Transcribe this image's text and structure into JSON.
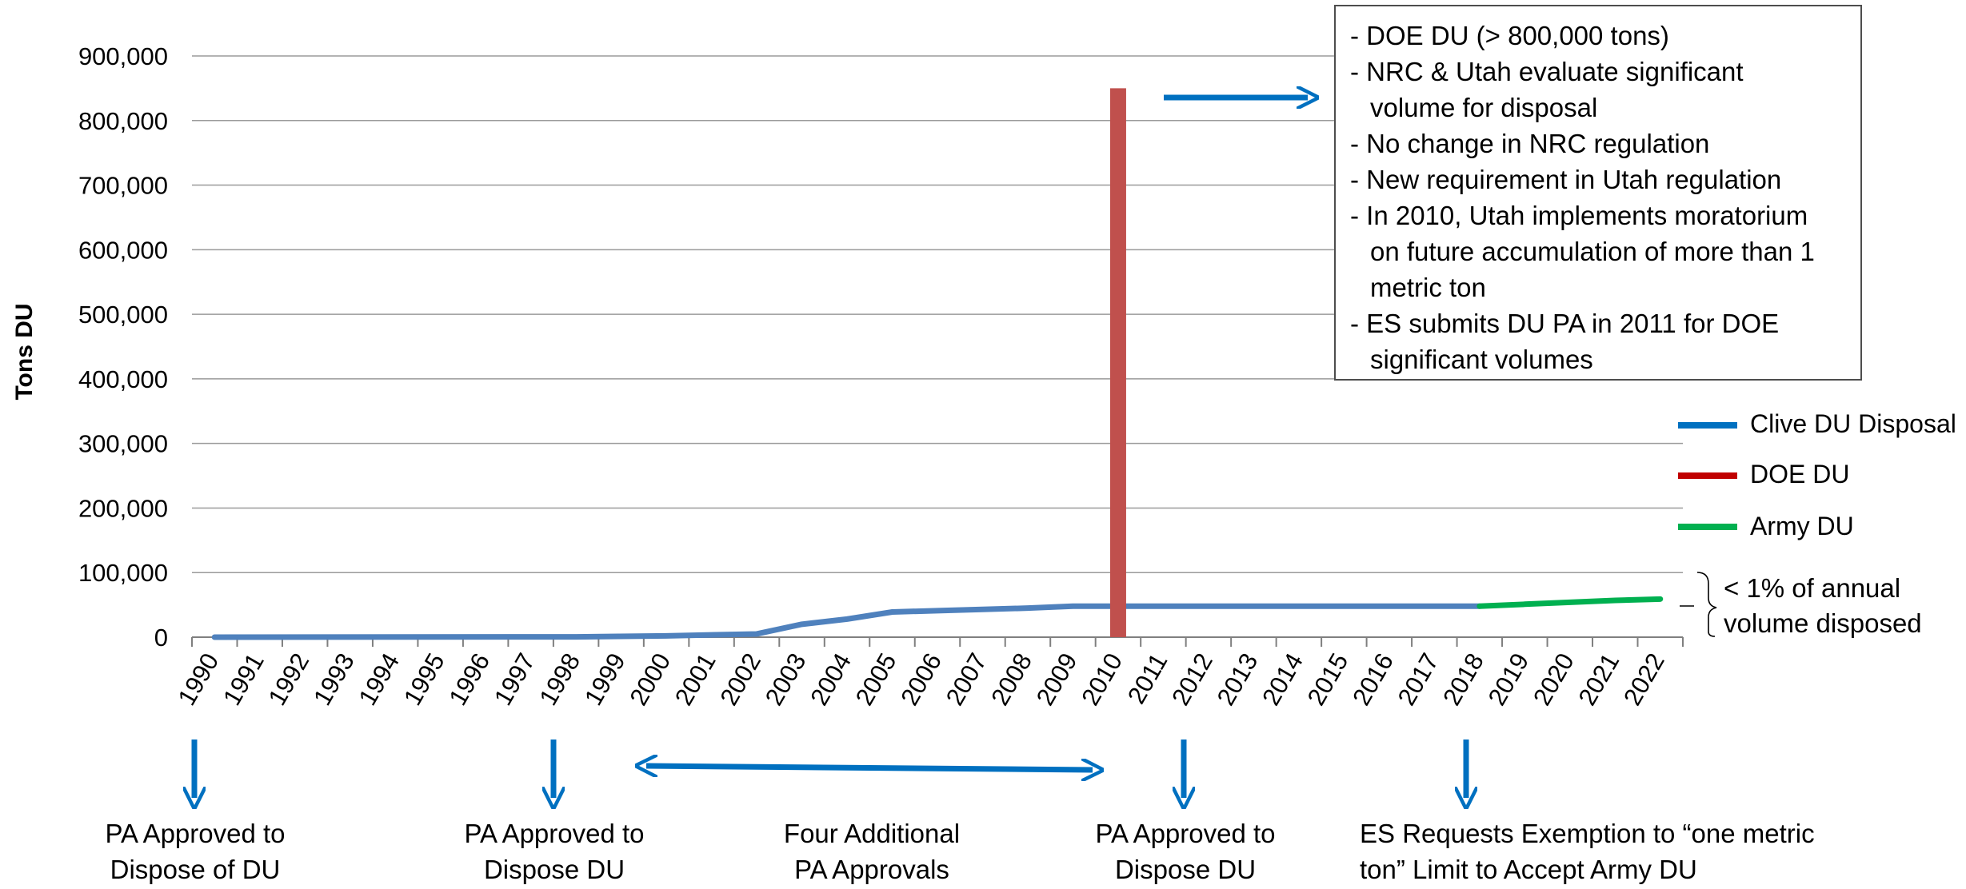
{
  "chart_data": {
    "type": "line",
    "ylabel": "Tons DU",
    "xlabel": "",
    "title": "",
    "ylim": [
      0,
      900000
    ],
    "yticks": [
      0,
      100000,
      200000,
      300000,
      400000,
      500000,
      600000,
      700000,
      800000,
      900000
    ],
    "ytick_labels": [
      "0",
      "100,000",
      "200,000",
      "300,000",
      "400,000",
      "500,000",
      "600,000",
      "700,000",
      "800,000",
      "900,000"
    ],
    "categories": [
      "1990",
      "1991",
      "1992",
      "1993",
      "1994",
      "1995",
      "1996",
      "1997",
      "1998",
      "1999",
      "2000",
      "2001",
      "2002",
      "2003",
      "2004",
      "2005",
      "2006",
      "2007",
      "2008",
      "2009",
      "2010",
      "2011",
      "2012",
      "2013",
      "2014",
      "2015",
      "2016",
      "2017",
      "2018",
      "2019",
      "2020",
      "2021",
      "2022"
    ],
    "grid": true,
    "legend_position": "right",
    "series": [
      {
        "name": "Clive DU Disposal",
        "color": "#4f81bd",
        "points": [
          [
            "1990",
            0
          ],
          [
            "1998",
            500
          ],
          [
            "2000",
            2000
          ],
          [
            "2002",
            5000
          ],
          [
            "2003",
            20000
          ],
          [
            "2004",
            28000
          ],
          [
            "2005",
            39000
          ],
          [
            "2006",
            41000
          ],
          [
            "2007",
            43000
          ],
          [
            "2008",
            45000
          ],
          [
            "2009",
            48000
          ],
          [
            "2018",
            48000
          ]
        ]
      },
      {
        "name": "DOE DU",
        "color": "#c0504d",
        "bar": {
          "x": "2010",
          "value": 850000
        }
      },
      {
        "name": "Army DU",
        "color": "#00b050",
        "points": [
          [
            "2018",
            48000
          ],
          [
            "2019",
            51000
          ],
          [
            "2020",
            54000
          ],
          [
            "2021",
            57000
          ],
          [
            "2022",
            59000
          ]
        ]
      }
    ]
  },
  "legend": {
    "items": [
      {
        "label": "Clive DU Disposal",
        "color": "#0070c0"
      },
      {
        "label": "DOE DU",
        "color": "#c00000"
      },
      {
        "label": "Army DU",
        "color": "#00b050"
      }
    ]
  },
  "note_box": {
    "lines": [
      {
        "text": "- DOE DU (> 800,000 tons)",
        "indent": false
      },
      {
        "text": "- NRC & Utah evaluate significant",
        "indent": false
      },
      {
        "text": "volume for disposal",
        "indent": true
      },
      {
        "text": "- No change in NRC regulation",
        "indent": false
      },
      {
        "text": "- New requirement in Utah regulation",
        "indent": false
      },
      {
        "text": "- In 2010, Utah implements moratorium",
        "indent": false
      },
      {
        "text": "on future accumulation of more than 1",
        "indent": true
      },
      {
        "text": "metric ton",
        "indent": true
      },
      {
        "text": "- ES submits DU PA in 2011 for DOE",
        "indent": false
      },
      {
        "text": "significant volumes",
        "indent": true
      }
    ]
  },
  "brace_note": {
    "line1": "< 1% of annual",
    "line2": "volume disposed"
  },
  "milestones": [
    {
      "line1": "PA Approved to",
      "line2": "Dispose of DU"
    },
    {
      "line1": "PA Approved to",
      "line2": "Dispose DU"
    },
    {
      "line1": "Four Additional",
      "line2": "PA Approvals"
    },
    {
      "line1": "PA Approved to",
      "line2": "Dispose DU"
    },
    {
      "line1": "ES Requests Exemption to “one metric",
      "line2": "ton” Limit to Accept Army DU"
    }
  ],
  "annotation_color": "#0070c0"
}
